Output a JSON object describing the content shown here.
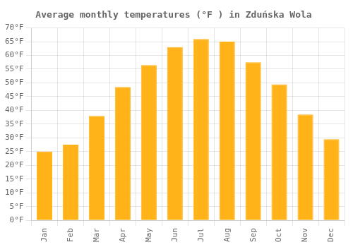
{
  "chart_data": {
    "type": "bar",
    "title": "Average monthly temperatures (°F ) in Zduńska Wola",
    "categories": [
      "Jan",
      "Feb",
      "Mar",
      "Apr",
      "May",
      "Jun",
      "Jul",
      "Aug",
      "Sep",
      "Oct",
      "Nov",
      "Dec"
    ],
    "values": [
      25,
      27.5,
      38,
      48.5,
      56.5,
      63,
      66,
      65,
      57.5,
      49.5,
      38.5,
      29.5
    ],
    "color": "#FFB319",
    "ylim": [
      0,
      70
    ],
    "yticks": [
      {
        "value": 0,
        "label": "0°F"
      },
      {
        "value": 5,
        "label": "5°F"
      },
      {
        "value": 10,
        "label": "10°F"
      },
      {
        "value": 15,
        "label": "15°F"
      },
      {
        "value": 20,
        "label": "20°F"
      },
      {
        "value": 25,
        "label": "25°F"
      },
      {
        "value": 30,
        "label": "30°F"
      },
      {
        "value": 35,
        "label": "35°F"
      },
      {
        "value": 40,
        "label": "40°F"
      },
      {
        "value": 45,
        "label": "45°F"
      },
      {
        "value": 50,
        "label": "50°F"
      },
      {
        "value": 55,
        "label": "55°F"
      },
      {
        "value": 60,
        "label": "60°F"
      },
      {
        "value": 65,
        "label": "65°F"
      },
      {
        "value": 70,
        "label": "70°F"
      }
    ],
    "grid": true
  }
}
